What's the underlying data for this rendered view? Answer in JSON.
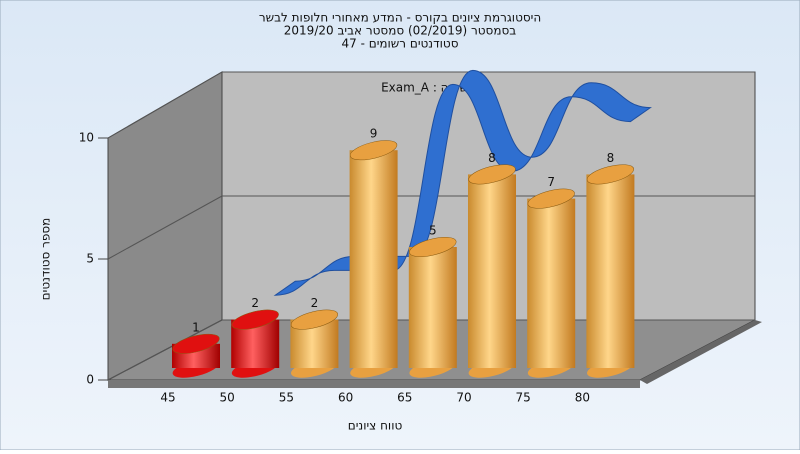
{
  "chart_data": {
    "type": "bar",
    "title": [
      "היסטוגרמת ציונים בקורס - המדע מאחורי חלופות לבשר",
      "בסמסטר (02/2019)  סמסטר אביב 2019/20",
      "סטודנטים רשומים - 47"
    ],
    "annotation": "Exam_A : במשימה",
    "ylabel": "מספר סטודנטים",
    "xlabel": "טווח ציונים",
    "categories": [
      "45",
      "50",
      "55",
      "60",
      "65",
      "70",
      "75",
      "80"
    ],
    "values": [
      1,
      2,
      2,
      9,
      5,
      8,
      7,
      8
    ],
    "colors": [
      "#e01010",
      "#e01010",
      "#e8a040",
      "#e8a040",
      "#e8a040",
      "#e8a040",
      "#e8a040",
      "#e8a040"
    ],
    "line_values": [
      null,
      1,
      2,
      2,
      9.5,
      6,
      9,
      8
    ],
    "line_color": "#2f6fd0",
    "ylim": [
      0,
      10
    ],
    "yticks": [
      0,
      5,
      10
    ],
    "grid": true
  }
}
